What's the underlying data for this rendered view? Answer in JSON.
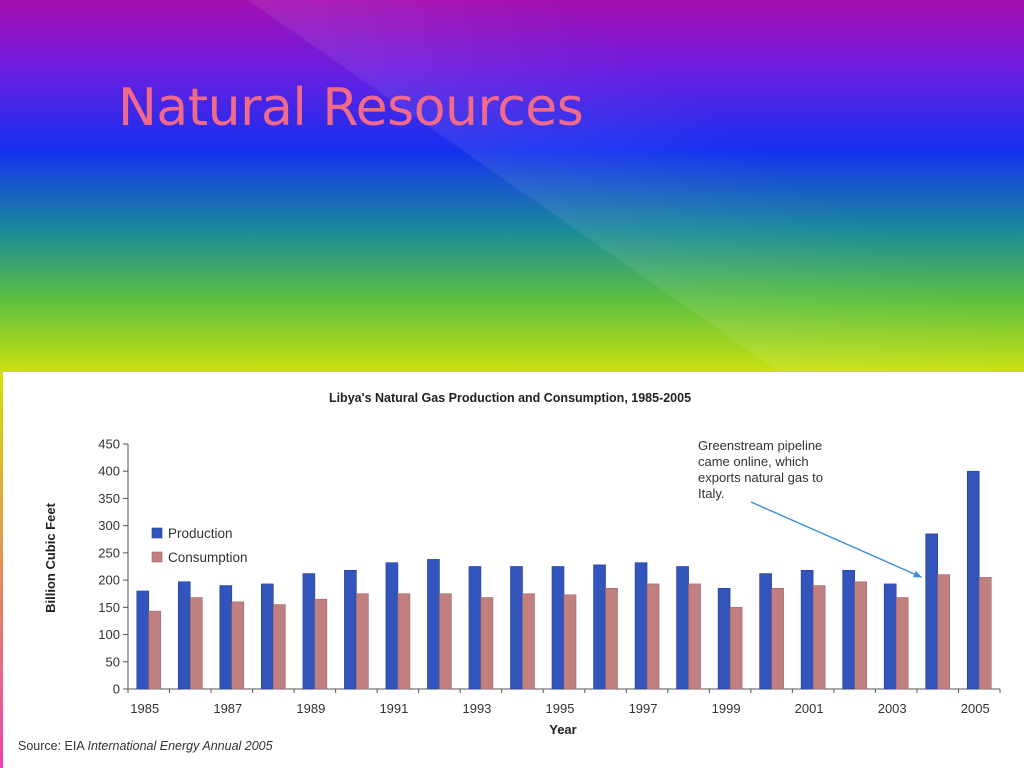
{
  "slide": {
    "title": "Natural Resources"
  },
  "chart_data": {
    "type": "bar",
    "title": "Libya's Natural Gas Production and Consumption, 1985-2005",
    "xlabel": "Year",
    "ylabel": "Billion Cubic Feet",
    "ylim": [
      0,
      450
    ],
    "yticks": [
      0,
      50,
      100,
      150,
      200,
      250,
      300,
      350,
      400,
      450
    ],
    "categories": [
      "1985",
      "1986",
      "1987",
      "1988",
      "1989",
      "1990",
      "1991",
      "1992",
      "1993",
      "1994",
      "1995",
      "1996",
      "1997",
      "1998",
      "1999",
      "2000",
      "2001",
      "2002",
      "2003",
      "2004",
      "2005"
    ],
    "xtick_labels": [
      "1985",
      "1987",
      "1989",
      "1991",
      "1993",
      "1995",
      "1997",
      "1999",
      "2001",
      "2003",
      "2005"
    ],
    "series": [
      {
        "name": "Production",
        "color": "#3355bb",
        "values": [
          180,
          197,
          190,
          193,
          212,
          218,
          232,
          238,
          225,
          225,
          225,
          228,
          232,
          225,
          185,
          212,
          218,
          218,
          193,
          285,
          400
        ]
      },
      {
        "name": "Consumption",
        "color": "#c08080",
        "values": [
          143,
          168,
          160,
          155,
          165,
          175,
          175,
          175,
          168,
          175,
          173,
          185,
          193,
          193,
          150,
          185,
          190,
          197,
          168,
          210,
          205
        ]
      }
    ],
    "legend_position": "left",
    "annotation": {
      "lines": [
        "Greenstream pipeline",
        "came online, which",
        "exports natural gas to",
        "Italy."
      ],
      "target_category": "2004"
    },
    "source_prefix": "Source: EIA ",
    "source_italic": "International Energy Annual 2005"
  }
}
